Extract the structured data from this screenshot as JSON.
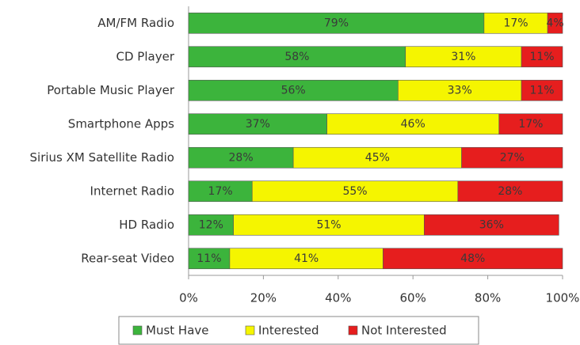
{
  "chart_data": {
    "type": "stacked-bar-horizontal",
    "categories": [
      "AM/FM Radio",
      "CD Player",
      "Portable Music Player",
      "Smartphone Apps",
      "Sirius XM Satellite Radio",
      "Internet Radio",
      "HD Radio",
      "Rear-seat Video"
    ],
    "series": [
      {
        "name": "Must Have",
        "color": "#3cb43c",
        "values": [
          79,
          58,
          56,
          37,
          28,
          17,
          12,
          11
        ],
        "value_labels": [
          "79%",
          "58%",
          "56%",
          "37%",
          "28%",
          "17%",
          "12%",
          "11%"
        ]
      },
      {
        "name": "Interested",
        "color": "#f5f500",
        "values": [
          17,
          31,
          33,
          46,
          45,
          55,
          51,
          41
        ],
        "value_labels": [
          "17%",
          "31%",
          "33%",
          "46%",
          "45%",
          "55%",
          "51%",
          "41%"
        ]
      },
      {
        "name": "Not Interested",
        "color": "#e61e1e",
        "values": [
          4,
          11,
          11,
          17,
          27,
          28,
          36,
          48
        ],
        "value_labels": [
          "4%",
          "11%",
          "11%",
          "17%",
          "27%",
          "28%",
          "36%",
          "48%"
        ]
      }
    ],
    "xlim": [
      0,
      100
    ],
    "xticks": [
      {
        "value": 0,
        "label": "0%"
      },
      {
        "value": 20,
        "label": "20%"
      },
      {
        "value": 40,
        "label": "40%"
      },
      {
        "value": 60,
        "label": "60%"
      },
      {
        "value": 80,
        "label": "80%"
      },
      {
        "value": 100,
        "label": "100%"
      }
    ],
    "legend": "bottom"
  }
}
